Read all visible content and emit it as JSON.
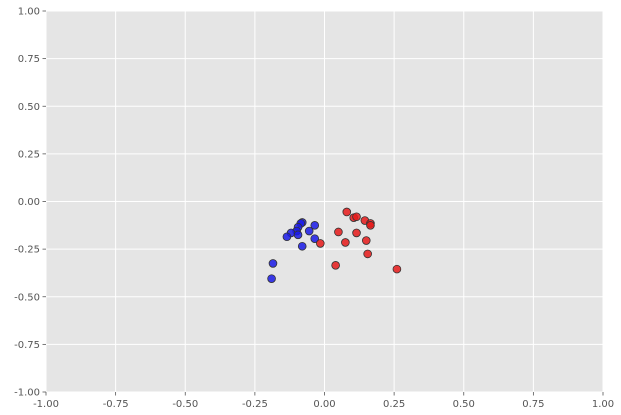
{
  "chart_data": {
    "type": "scatter",
    "title": "",
    "xlabel": "",
    "ylabel": "",
    "xlim": [
      -1.0,
      1.0
    ],
    "ylim": [
      -1.0,
      1.0
    ],
    "grid": true,
    "x_ticks": [
      "-1.00",
      "-0.75",
      "-0.50",
      "-0.25",
      "0.00",
      "0.25",
      "0.50",
      "0.75",
      "1.00"
    ],
    "y_ticks": [
      "1.00",
      "0.75",
      "0.50",
      "0.25",
      "0.00",
      "-0.25",
      "-0.50",
      "-0.75",
      "-1.00"
    ],
    "colors": {
      "plot_background": "#e5e5e5",
      "grid": "#ffffff",
      "marker_edge": "#333333"
    },
    "series": [
      {
        "color": "#1a1ae6",
        "points": [
          {
            "x": -0.08,
            "y": -0.11
          },
          {
            "x": -0.085,
            "y": -0.115
          },
          {
            "x": -0.095,
            "y": -0.135
          },
          {
            "x": -0.1,
            "y": -0.155
          },
          {
            "x": -0.12,
            "y": -0.165
          },
          {
            "x": -0.135,
            "y": -0.185
          },
          {
            "x": -0.035,
            "y": -0.125
          },
          {
            "x": -0.055,
            "y": -0.155
          },
          {
            "x": -0.095,
            "y": -0.175
          },
          {
            "x": -0.035,
            "y": -0.195
          },
          {
            "x": -0.08,
            "y": -0.235
          },
          {
            "x": -0.185,
            "y": -0.325
          },
          {
            "x": -0.19,
            "y": -0.405
          }
        ]
      },
      {
        "color": "#e61a1a",
        "points": [
          {
            "x": 0.08,
            "y": -0.055
          },
          {
            "x": 0.105,
            "y": -0.085
          },
          {
            "x": 0.115,
            "y": -0.08
          },
          {
            "x": 0.145,
            "y": -0.1
          },
          {
            "x": 0.165,
            "y": -0.115
          },
          {
            "x": 0.165,
            "y": -0.125
          },
          {
            "x": 0.05,
            "y": -0.16
          },
          {
            "x": 0.115,
            "y": -0.165
          },
          {
            "x": 0.075,
            "y": -0.215
          },
          {
            "x": 0.15,
            "y": -0.205
          },
          {
            "x": -0.015,
            "y": -0.22
          },
          {
            "x": 0.155,
            "y": -0.275
          },
          {
            "x": 0.04,
            "y": -0.335
          },
          {
            "x": 0.26,
            "y": -0.355
          }
        ]
      }
    ]
  }
}
